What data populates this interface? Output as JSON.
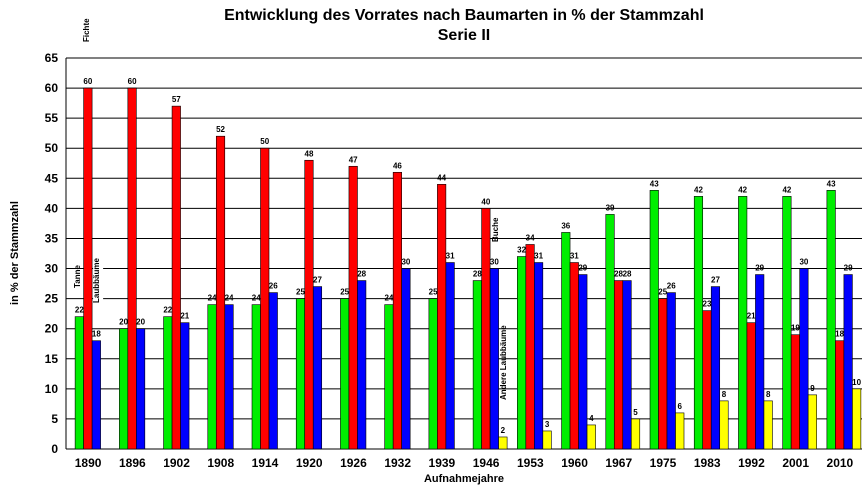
{
  "chart_data": {
    "type": "bar",
    "title": "Entwicklung des Vorrates nach Baumarten in % der Stammzahl",
    "subtitle": "Serie II",
    "x_label": "Aufnahmejahre",
    "y_label": "in % der Stammzahl",
    "categories": [
      "1890",
      "1896",
      "1902",
      "1908",
      "1914",
      "1920",
      "1926",
      "1932",
      "1939",
      "1946",
      "1953",
      "1960",
      "1967",
      "1975",
      "1983",
      "1992",
      "2001",
      "2010"
    ],
    "series": [
      {
        "name": "Tanne",
        "color": "#00ee00",
        "values": [
          22,
          20,
          22,
          24,
          24,
          25,
          25,
          24,
          25,
          28,
          32,
          36,
          39,
          43,
          42,
          42,
          42,
          43
        ]
      },
      {
        "name": "Fichte",
        "color": "#ff0000",
        "values": [
          60,
          60,
          57,
          52,
          50,
          48,
          47,
          46,
          44,
          40,
          34,
          31,
          28,
          25,
          23,
          21,
          19,
          18
        ]
      },
      {
        "name": "Laubbäume",
        "color": "#0000ff",
        "values": [
          18,
          20,
          21,
          24,
          26,
          27,
          28,
          30,
          31,
          30,
          31,
          29,
          28,
          26,
          27,
          29,
          30,
          29
        ]
      },
      {
        "name": "Andere Laubbäume",
        "color": "#ffff00",
        "values": [
          null,
          null,
          null,
          null,
          null,
          null,
          null,
          null,
          null,
          2,
          3,
          4,
          5,
          6,
          8,
          8,
          9,
          10
        ]
      }
    ],
    "annotations": [
      "Buche"
    ],
    "ylim": [
      0,
      65
    ],
    "yticks": [
      0,
      5,
      10,
      15,
      20,
      25,
      30,
      35,
      40,
      45,
      50,
      55,
      60,
      65
    ],
    "grid": true
  }
}
